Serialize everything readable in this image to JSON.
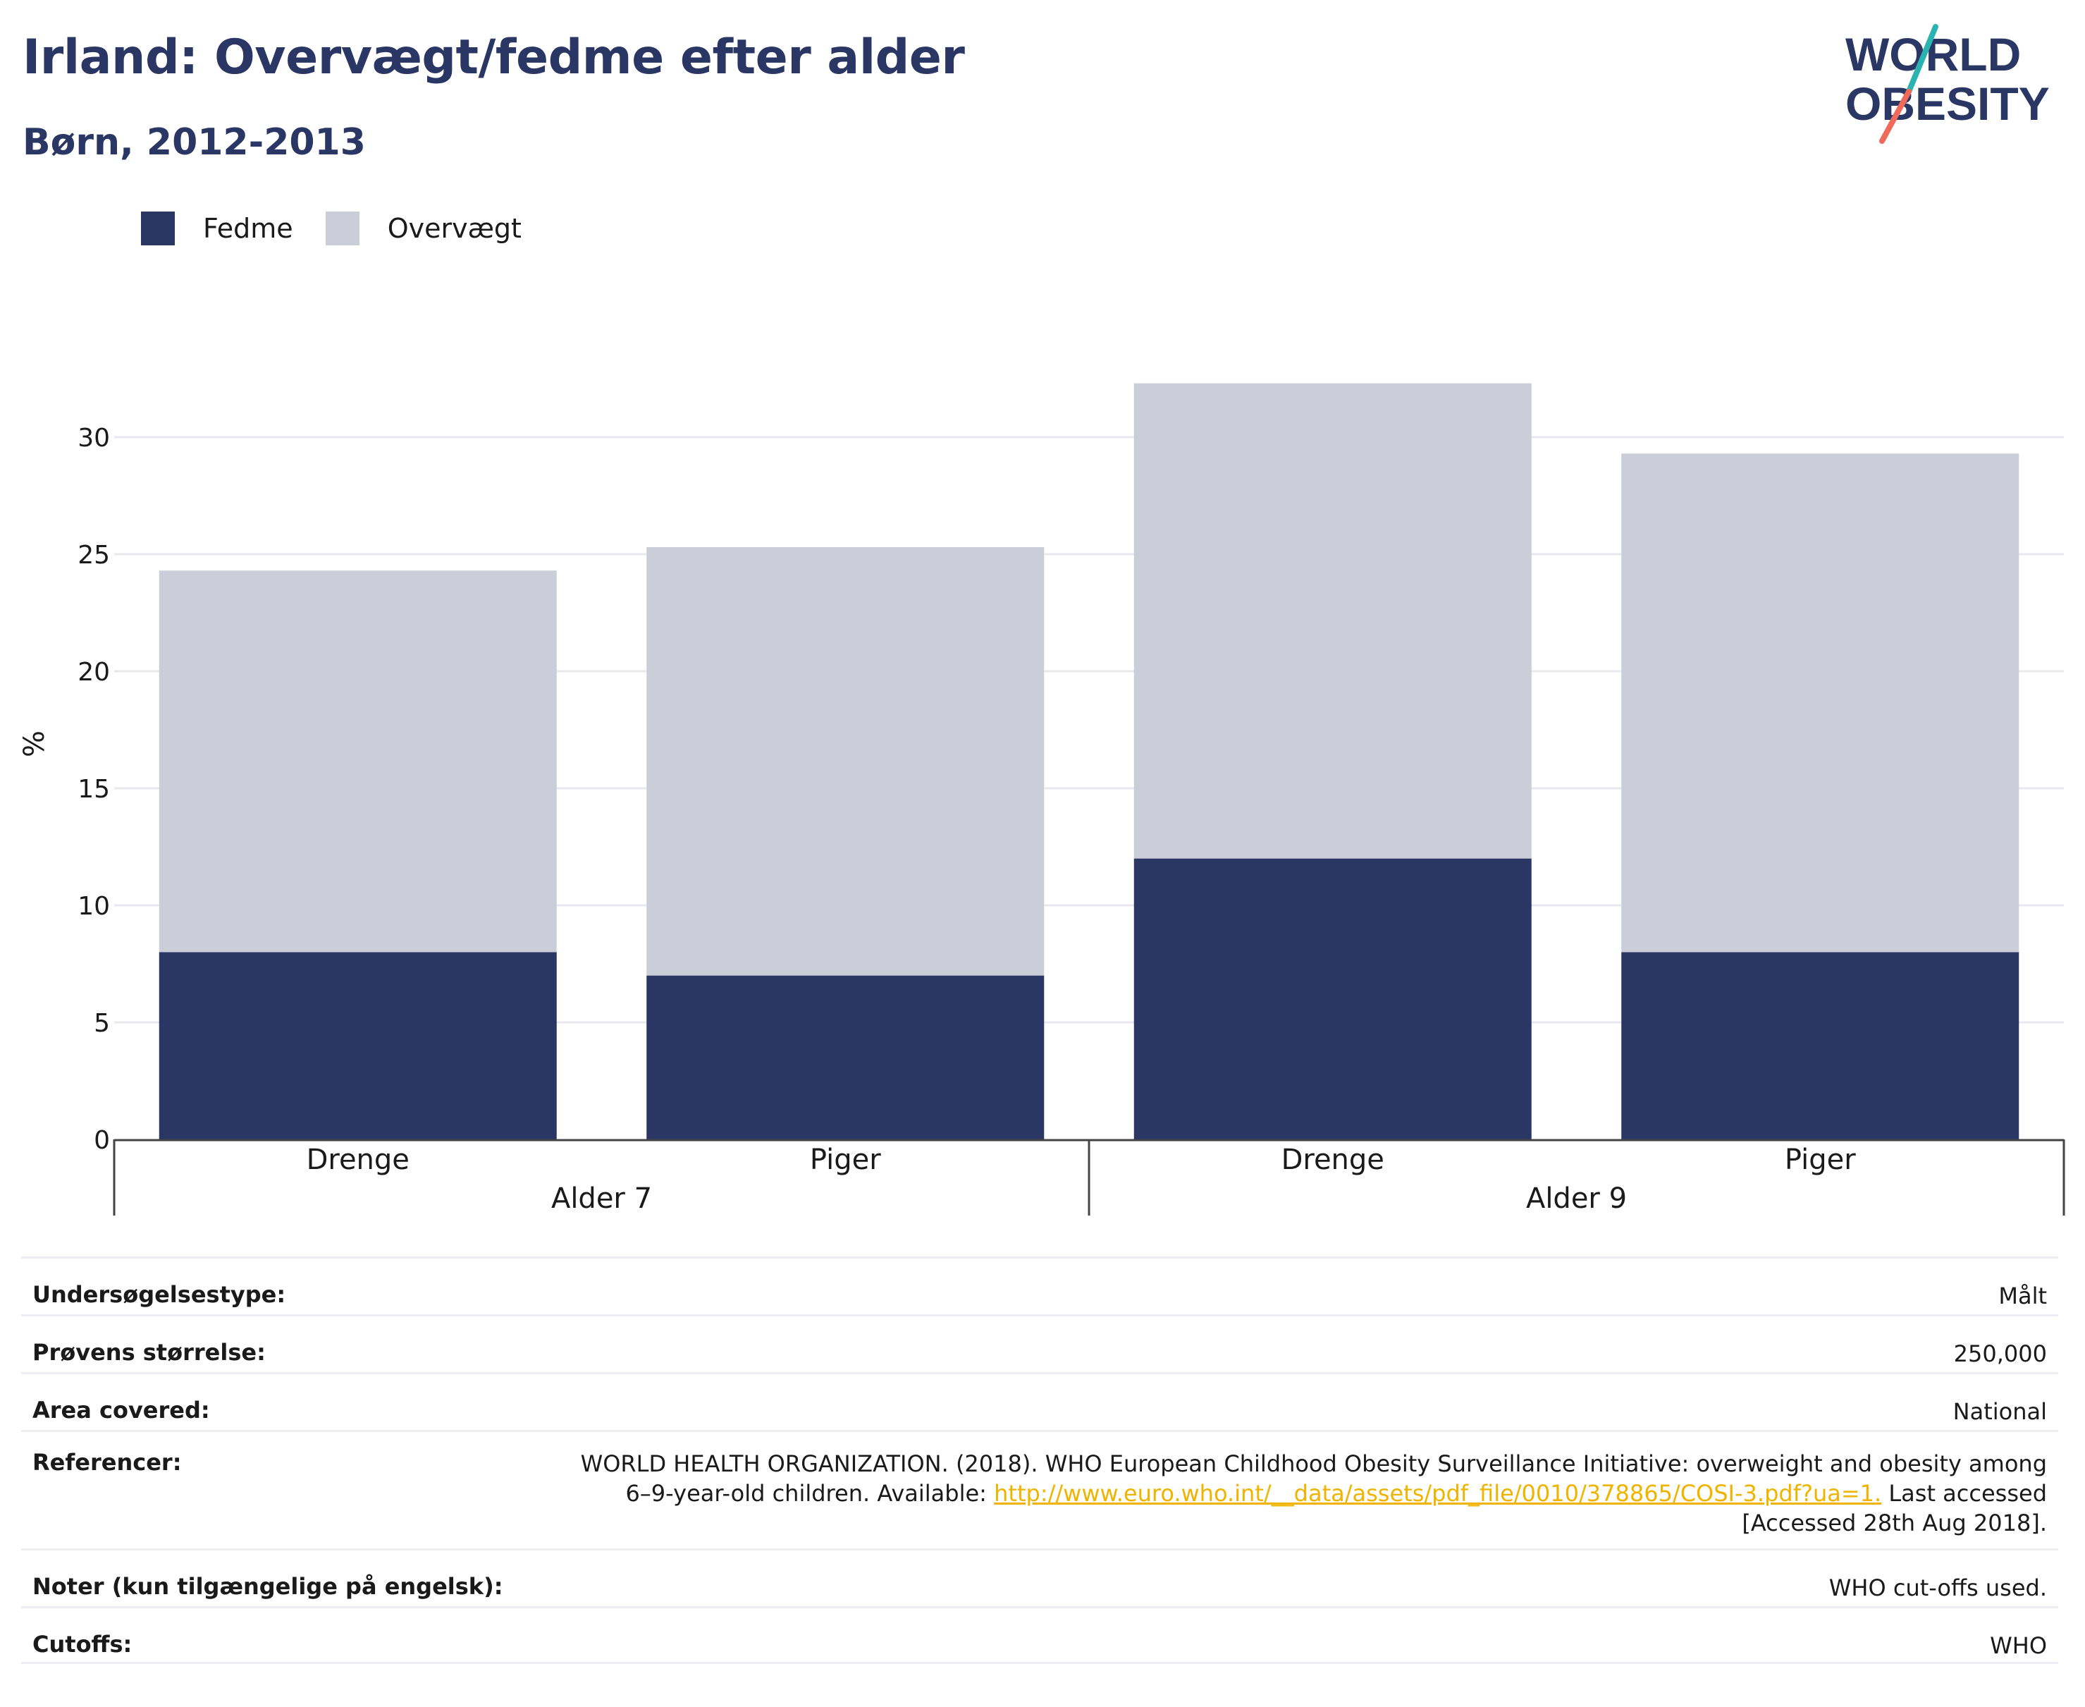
{
  "header": {
    "title": "Irland: Overvægt/fedme efter alder",
    "subtitle": "Børn, 2012-2013"
  },
  "logo": {
    "line1": "WORLD",
    "line2": "OBESITY",
    "colors": {
      "text": "#2a3663",
      "slash_top": "#2ab3b0",
      "slash_bottom": "#ef6a5a"
    }
  },
  "legend": [
    {
      "label": "Fedme",
      "color": "#2a3663"
    },
    {
      "label": "Overvægt",
      "color": "#cbcdd8"
    }
  ],
  "chart_data": {
    "type": "bar",
    "stacked": true,
    "ylabel": "%",
    "ylim": [
      0,
      32
    ],
    "yticks": [
      0,
      5,
      10,
      15,
      20,
      25,
      30
    ],
    "grid": true,
    "legend_position": "top-left",
    "groups": [
      {
        "label": "Alder 7",
        "categories": [
          "Drenge",
          "Piger"
        ]
      },
      {
        "label": "Alder 9",
        "categories": [
          "Drenge",
          "Piger"
        ]
      }
    ],
    "categories": [
      "Drenge",
      "Piger",
      "Drenge",
      "Piger"
    ],
    "series": [
      {
        "name": "Fedme",
        "color": "#2a3663",
        "values": [
          8,
          7,
          12,
          8
        ]
      },
      {
        "name": "Overvægt",
        "color": "#cbcdd8",
        "values": [
          16.3,
          18.3,
          20.3,
          21.3
        ]
      }
    ]
  },
  "info": {
    "rows": [
      {
        "key": "Undersøgelsestype:",
        "value": "Målt"
      },
      {
        "key": "Prøvens størrelse:",
        "value": "250,000"
      },
      {
        "key": "Area covered:",
        "value": "National"
      },
      {
        "key": "Referencer:",
        "value_parts": {
          "before": "WORLD HEALTH ORGANIZATION. (2018). WHO European Childhood Obesity Surveillance Initiative: overweight and obesity among 6–9-year-old children. Available: ",
          "link": "http://www.euro.who.int/__data/assets/pdf_file/0010/378865/COSI-3.pdf?ua=1.",
          "after": " Last accessed [Accessed 28th Aug 2018]."
        }
      },
      {
        "key": "Noter (kun tilgængelige på engelsk):",
        "value": "WHO cut-offs used."
      },
      {
        "key": "Cutoffs:",
        "value": "WHO"
      }
    ]
  }
}
